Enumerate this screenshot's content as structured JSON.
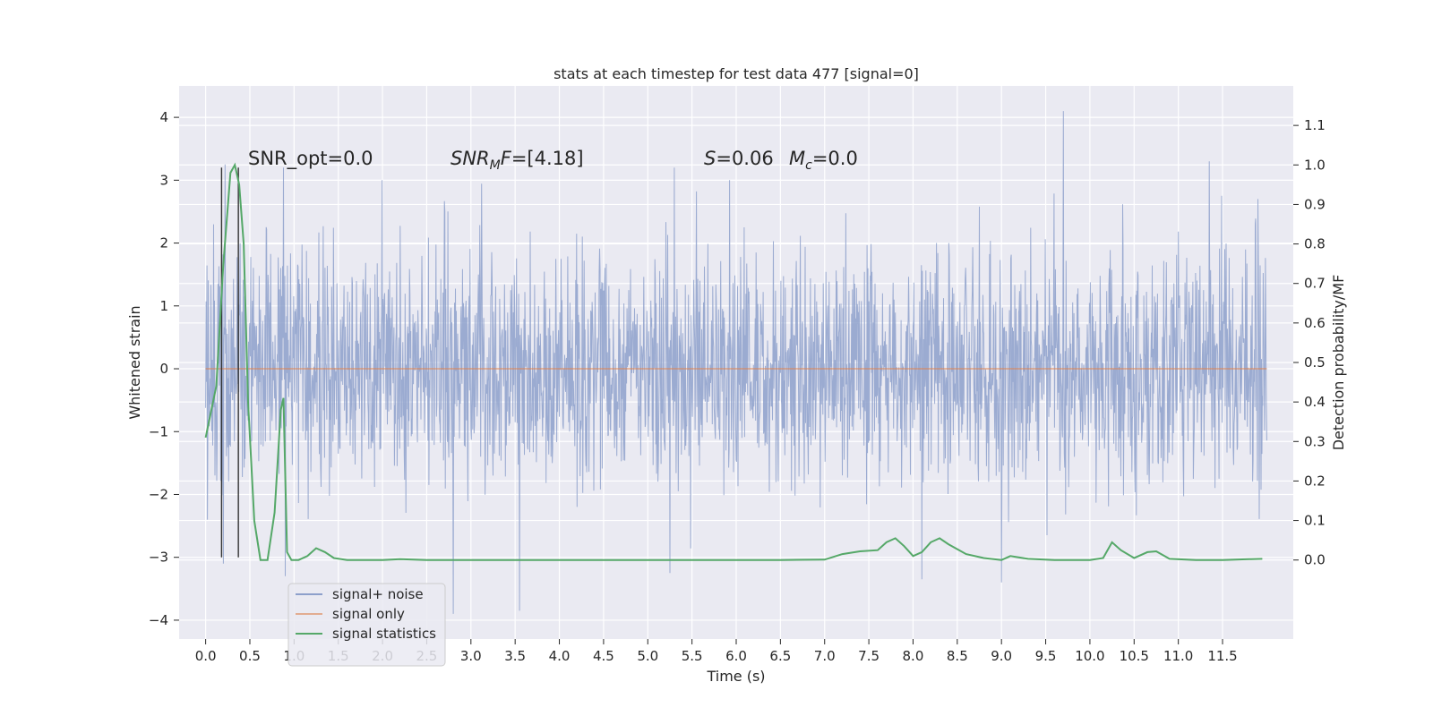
{
  "chart_data": {
    "type": "line",
    "title": "stats at each timestep for test data 477 [signal=0]",
    "xlabel": "Time (s)",
    "ylabel": "Whitened strain",
    "ylabel_right": "Detection probability/MF",
    "xlim": [
      -0.3,
      12.3
    ],
    "ylim": [
      -4.3,
      4.5
    ],
    "ylim_right": [
      -0.2,
      1.2
    ],
    "xticks": [
      "0.0",
      "0.5",
      "1.0",
      "1.5",
      "2.0",
      "2.5",
      "3.0",
      "3.5",
      "4.0",
      "4.5",
      "5.0",
      "5.5",
      "6.0",
      "6.5",
      "7.0",
      "7.5",
      "8.0",
      "8.5",
      "9.0",
      "9.5",
      "10.0",
      "10.5",
      "11.0",
      "11.5"
    ],
    "yticks_left": [
      "4",
      "3",
      "2",
      "1",
      "0",
      "−1",
      "−2",
      "−3",
      "−4"
    ],
    "yticks_right": [
      "1.1",
      "1.0",
      "0.9",
      "0.8",
      "0.7",
      "0.6",
      "0.5",
      "0.4",
      "0.3",
      "0.2",
      "0.1",
      "0.0"
    ],
    "grid": true,
    "legend_position": "lower-left",
    "annotations": {
      "snr_opt": "SNR_opt=0.0",
      "snr_mf_base": "SNR",
      "snr_mf_sub": "M",
      "snr_mf_rest": "F=[4.18]",
      "s_label": "S",
      "s_value": "=0.06",
      "mc_base": "M",
      "mc_sub": "c",
      "mc_value": "=0.0"
    },
    "series": [
      {
        "name": "signal+ noise",
        "color": "#8da0cb",
        "axis": "left",
        "x_range": [
          0.0,
          12.0
        ],
        "spike_maxima": [
          [
            0.02,
            2.25
          ],
          [
            0.22,
            3.25
          ],
          [
            0.88,
            3.2
          ],
          [
            5.3,
            3.2
          ],
          [
            9.7,
            4.1
          ],
          [
            11.35,
            3.3
          ],
          [
            11.9,
            2.7
          ]
        ],
        "spike_minima": [
          [
            0.02,
            -2.4
          ],
          [
            0.2,
            -3.1
          ],
          [
            0.9,
            -3.3
          ],
          [
            2.8,
            -3.9
          ],
          [
            3.55,
            -3.85
          ],
          [
            5.25,
            -3.25
          ],
          [
            8.1,
            -3.35
          ],
          [
            9.0,
            -3.4
          ]
        ]
      },
      {
        "name": "signal only",
        "color": "#dd8452",
        "axis": "left",
        "x": [
          0.0,
          12.0
        ],
        "y": [
          0.0,
          0.0
        ]
      },
      {
        "name": "signal statistics",
        "color": "#55a868",
        "axis": "right",
        "x": [
          0.0,
          0.12,
          0.2,
          0.28,
          0.33,
          0.38,
          0.43,
          0.48,
          0.55,
          0.62,
          0.7,
          0.78,
          0.85,
          0.88,
          0.92,
          0.97,
          1.05,
          1.15,
          1.25,
          1.35,
          1.45,
          1.6,
          1.8,
          2.0,
          2.2,
          2.5,
          3.0,
          4.0,
          5.0,
          6.0,
          6.5,
          7.0,
          7.2,
          7.4,
          7.6,
          7.7,
          7.8,
          7.9,
          8.0,
          8.1,
          8.2,
          8.3,
          8.4,
          8.6,
          8.8,
          9.0,
          9.1,
          9.3,
          9.6,
          10.0,
          10.15,
          10.25,
          10.35,
          10.5,
          10.65,
          10.75,
          10.9,
          11.2,
          11.5,
          11.8,
          11.95
        ],
        "y": [
          0.31,
          0.44,
          0.75,
          0.98,
          1.0,
          0.95,
          0.8,
          0.4,
          0.1,
          0.0,
          0.0,
          0.12,
          0.38,
          0.41,
          0.02,
          0.0,
          0.0,
          0.01,
          0.03,
          0.02,
          0.005,
          0.0,
          0.0,
          0.0,
          0.002,
          0.0,
          0.0,
          0.0,
          0.0,
          0.0,
          0.0,
          0.001,
          0.015,
          0.022,
          0.025,
          0.045,
          0.055,
          0.035,
          0.01,
          0.02,
          0.045,
          0.055,
          0.04,
          0.015,
          0.005,
          0.0,
          0.01,
          0.003,
          0.0,
          0.0,
          0.005,
          0.045,
          0.025,
          0.005,
          0.02,
          0.022,
          0.003,
          0.0,
          0.0,
          0.002,
          0.003
        ]
      }
    ],
    "vertical_lines": {
      "color": "#333333",
      "x": [
        0.18,
        0.37
      ],
      "y_range": [
        -3.0,
        3.2
      ]
    }
  }
}
